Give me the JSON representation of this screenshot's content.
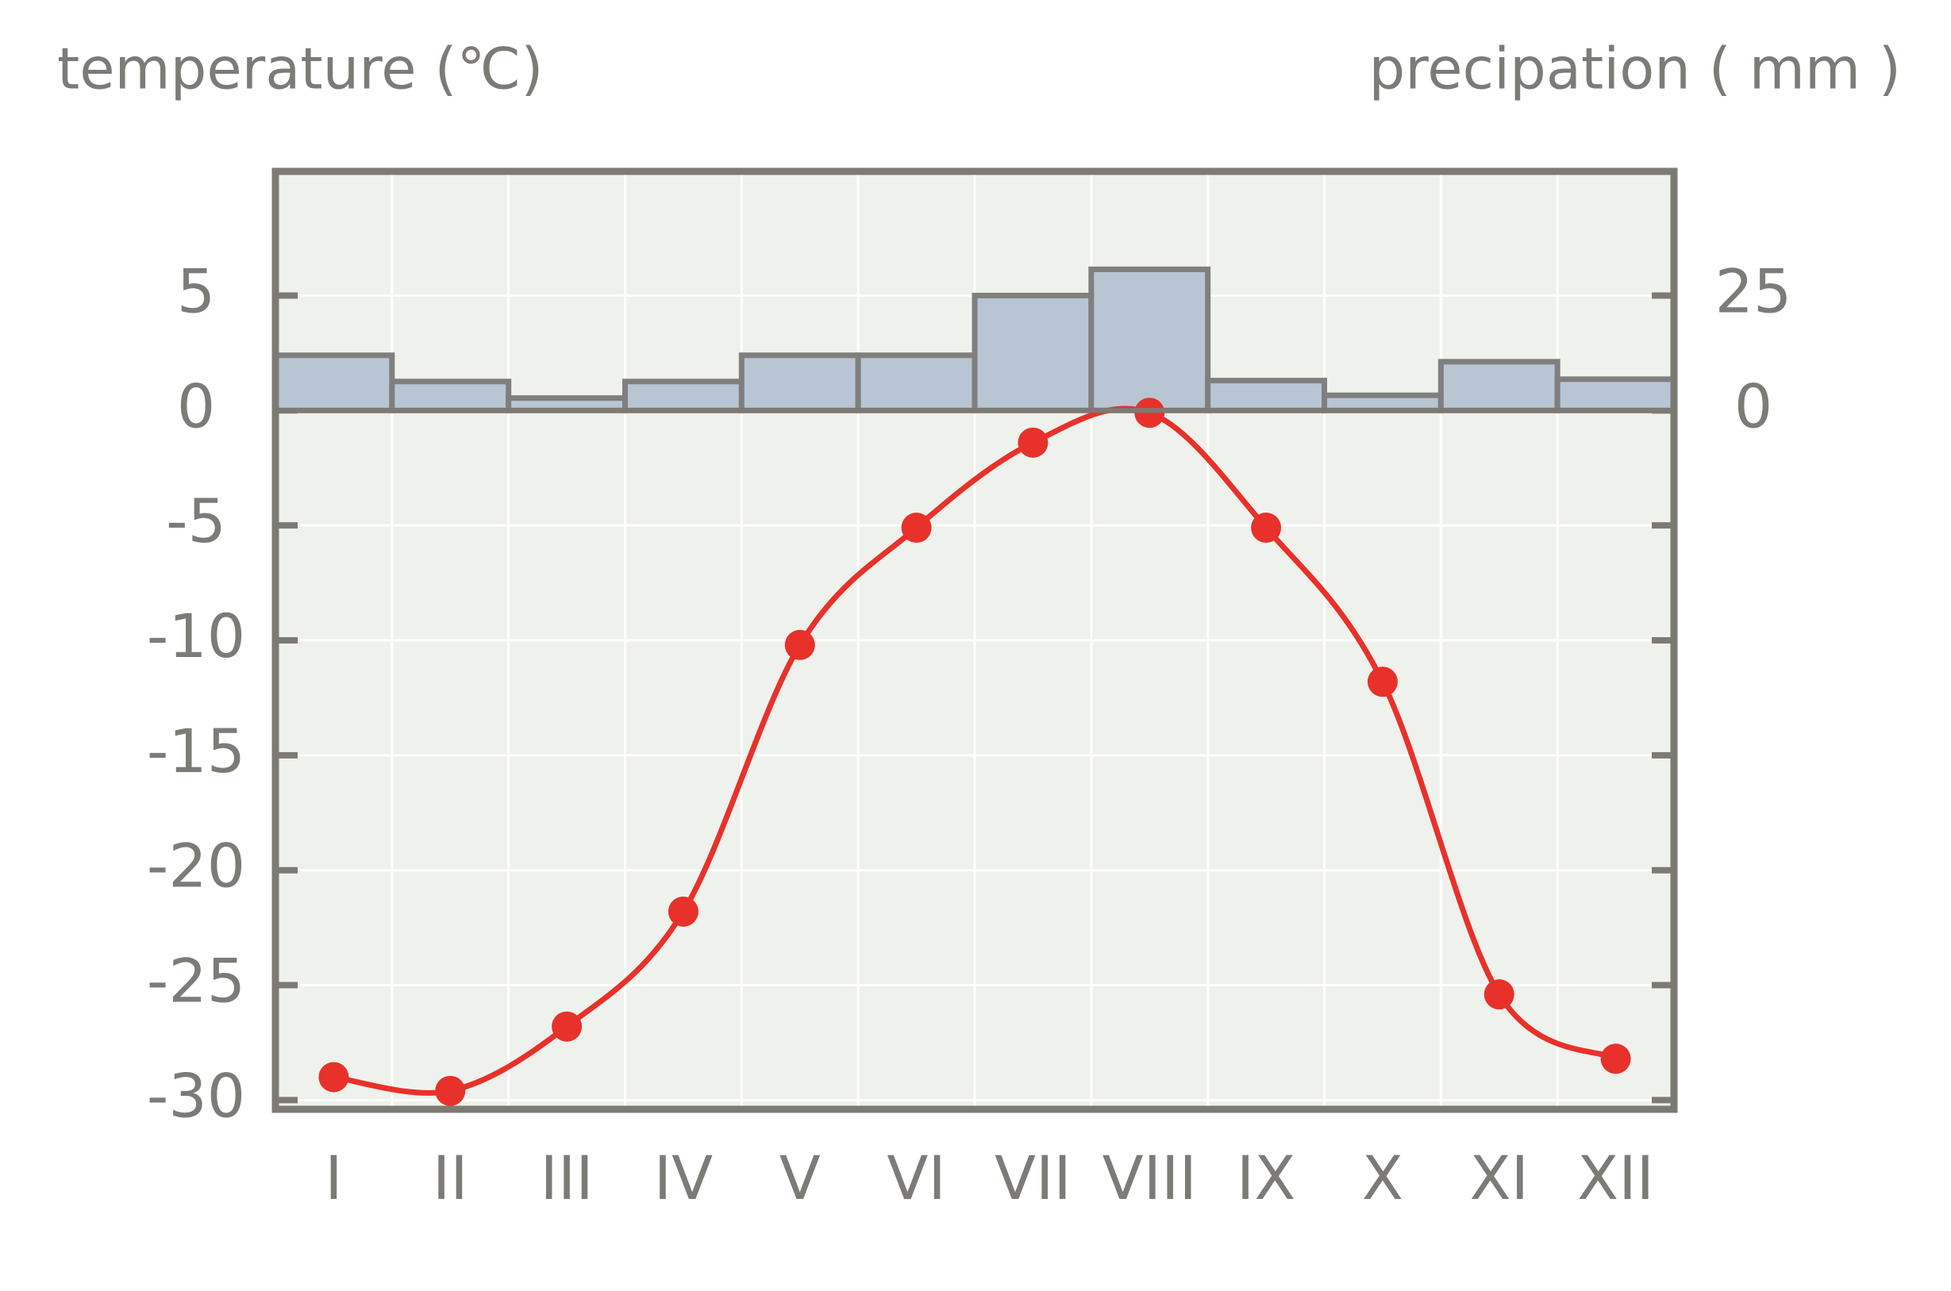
{
  "chart_data": {
    "type": "climate",
    "y_label": "temperature (℃)",
    "y2_label": "precipation ( mm )",
    "categories": [
      "I",
      "II",
      "III",
      "IV",
      "V",
      "VI",
      "VII",
      "VIII",
      "IX",
      "X",
      "XI",
      "XII"
    ],
    "series": [
      {
        "name": "precipitation",
        "type": "bar",
        "axis": "y2",
        "color": "#b7c6d2",
        "values": [
          12,
          6.3,
          2.7,
          6.3,
          12,
          12,
          25,
          30.7,
          6.5,
          3.3,
          10.6,
          6.8
        ]
      },
      {
        "name": "temperature",
        "type": "line",
        "color": "#e8312a",
        "values": [
          -29.0,
          -29.6,
          -26.8,
          -21.8,
          -10.2,
          -5.1,
          -1.4,
          -0.1,
          -5.1,
          -11.8,
          -25.4,
          -28.2
        ]
      }
    ],
    "ylim": [
      -30.4,
      10.4
    ],
    "yticks": [
      5,
      0,
      -5,
      -10,
      -15,
      -20,
      -25,
      -30
    ],
    "y2lim": [
      -152,
      52
    ],
    "y2ticks": [
      25,
      0
    ],
    "grid": true
  }
}
